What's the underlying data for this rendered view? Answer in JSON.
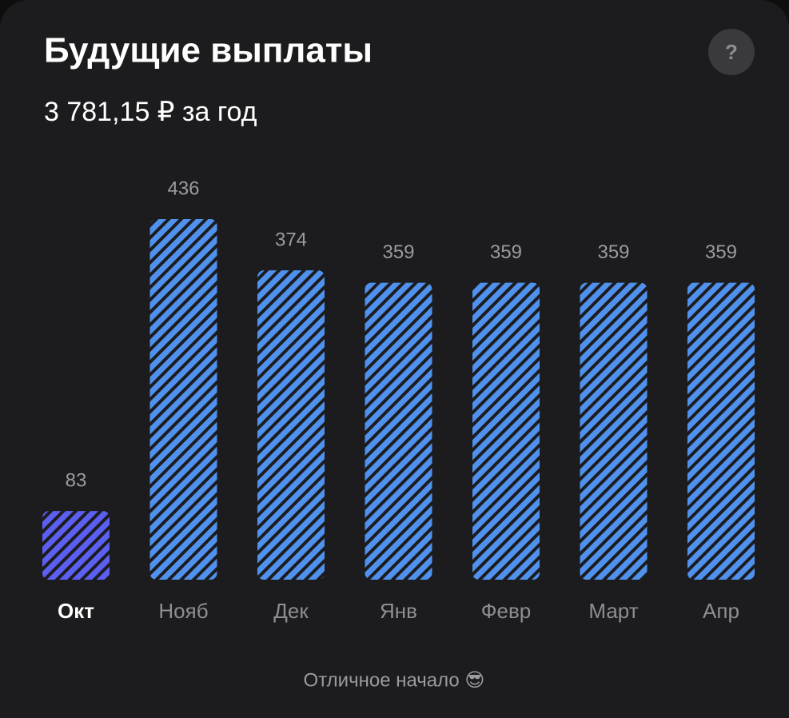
{
  "header": {
    "title": "Будущие выплаты",
    "subtitle": "3 781,15 ₽ за год",
    "help_button": "?"
  },
  "chart_data": {
    "type": "bar",
    "categories": [
      "Окт",
      "Нояб",
      "Дек",
      "Янв",
      "Февр",
      "Март",
      "Апр"
    ],
    "values": [
      83,
      436,
      374,
      359,
      359,
      359,
      359
    ],
    "colors": [
      "#5b5ff2",
      "#4f91ec",
      "#4f91ec",
      "#4f91ec",
      "#4f91ec",
      "#4f91ec",
      "#4f91ec"
    ],
    "selected_category": 0
  },
  "footer": "Отличное начало 😎"
}
